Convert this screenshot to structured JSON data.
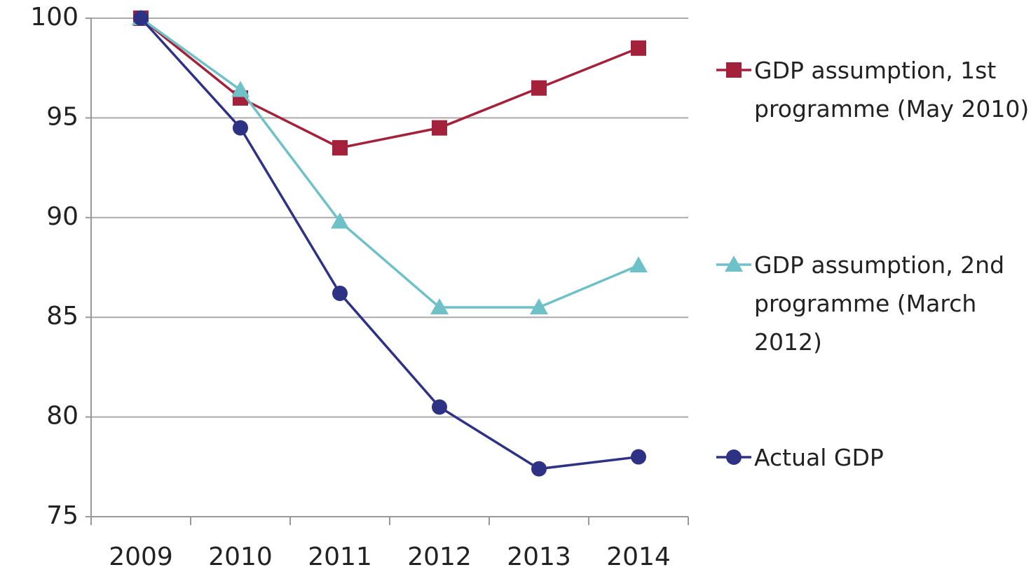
{
  "chart_data": {
    "type": "line",
    "categories": [
      "2009",
      "2010",
      "2011",
      "2012",
      "2013",
      "2014"
    ],
    "series": [
      {
        "name": "GDP assumption, 1st programme (May 2010)",
        "color": "#a3213a",
        "marker": "square",
        "values": [
          100,
          96,
          93.5,
          94.5,
          96.5,
          98.5
        ]
      },
      {
        "name": "GDP assumption, 2nd programme (March 2012)",
        "color": "#6fc1c8",
        "marker": "triangle",
        "values": [
          100,
          96.4,
          89.8,
          85.5,
          85.5,
          87.6
        ]
      },
      {
        "name": "Actual GDP",
        "color": "#2e3285",
        "marker": "circle",
        "values": [
          100,
          94.5,
          86.2,
          80.5,
          77.4,
          78.0
        ]
      }
    ],
    "ylim": [
      75,
      100
    ],
    "yticks": [
      75,
      80,
      85,
      90,
      95,
      100
    ],
    "grid": true,
    "legend": "right"
  }
}
